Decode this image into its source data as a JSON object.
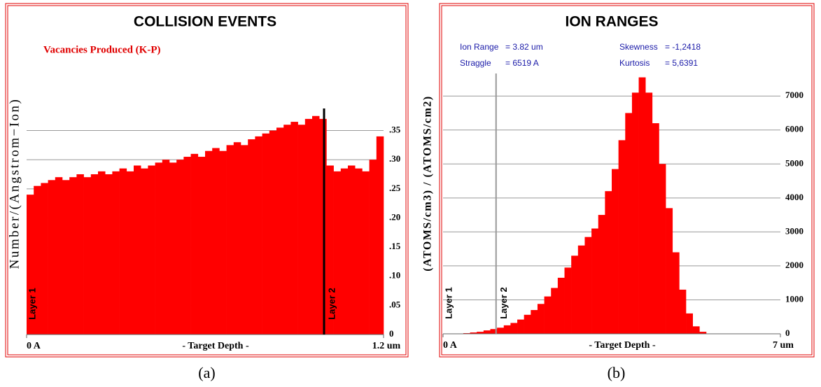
{
  "chart_data": [
    {
      "type": "histogram",
      "title": "COLLISION EVENTS",
      "subtitle": "Vacancies Produced (K-P)",
      "ylabel": "Number/(Angstrom−Ion)",
      "xlabel": "- Target Depth -",
      "caption": "(a)",
      "color": "#ff0000",
      "grid": true,
      "boundary_color": "#000000",
      "bins": [
        0,
        0.024,
        0.048,
        0.072,
        0.096,
        0.12,
        0.144,
        0.168,
        0.192,
        0.216,
        0.24,
        0.264,
        0.288,
        0.312,
        0.336,
        0.36,
        0.384,
        0.408,
        0.432,
        0.456,
        0.48,
        0.504,
        0.528,
        0.552,
        0.576,
        0.6,
        0.624,
        0.648,
        0.672,
        0.696,
        0.72,
        0.744,
        0.768,
        0.792,
        0.816,
        0.84,
        0.864,
        0.888,
        0.912,
        0.936,
        0.96,
        0.984,
        1.008,
        1.032,
        1.056,
        1.08,
        1.104,
        1.128,
        1.152,
        1.176,
        1.2
      ],
      "values": [
        0.24,
        0.255,
        0.26,
        0.265,
        0.27,
        0.265,
        0.27,
        0.275,
        0.27,
        0.275,
        0.28,
        0.275,
        0.28,
        0.285,
        0.28,
        0.29,
        0.285,
        0.29,
        0.295,
        0.3,
        0.295,
        0.3,
        0.305,
        0.31,
        0.305,
        0.315,
        0.32,
        0.315,
        0.325,
        0.33,
        0.325,
        0.335,
        0.34,
        0.345,
        0.35,
        0.355,
        0.36,
        0.365,
        0.36,
        0.37,
        0.375,
        0.37,
        0.29,
        0.28,
        0.285,
        0.29,
        0.285,
        0.28,
        0.3,
        0.34
      ],
      "xlim": [
        0,
        1.2
      ],
      "xticks": [
        {
          "value": 0,
          "label": "0 A"
        },
        {
          "value": 1.2,
          "label": "1.2 um"
        }
      ],
      "ylim": [
        0,
        0.52
      ],
      "yticks": [
        0,
        {
          "value": 0.05,
          "label": ".05"
        },
        {
          "value": 0.1,
          "label": ".10"
        },
        {
          "value": 0.15,
          "label": ".15"
        },
        {
          "value": 0.2,
          "label": ".20"
        },
        {
          "value": 0.25,
          "label": ".25"
        },
        {
          "value": 0.3,
          "label": ".30"
        },
        {
          "value": 0.35,
          "label": ".35"
        }
      ],
      "layers": [
        {
          "label": "Layer 1",
          "x": 0
        },
        {
          "label": "Layer 2",
          "x": 1.0
        }
      ]
    },
    {
      "type": "histogram",
      "title": "ION RANGES",
      "ylabel": "(ATOMS/cm3) / (ATOMS/cm2)",
      "xlabel": "- Target Depth -",
      "caption": "(b)",
      "color": "#ff0000",
      "grid": true,
      "boundary_color": "#999999",
      "stats": [
        {
          "label": "Ion Range",
          "value": "= 3.82 um"
        },
        {
          "label": "Straggle",
          "value": "= 6519 A"
        },
        {
          "label": "Skewness",
          "value": "= -1,2418"
        },
        {
          "label": "Kurtosis",
          "value": "= 5,6391"
        }
      ],
      "bins": [
        0,
        0.14,
        0.28,
        0.42,
        0.56,
        0.7,
        0.84,
        0.98,
        1.12,
        1.26,
        1.4,
        1.54,
        1.68,
        1.82,
        1.96,
        2.1,
        2.24,
        2.38,
        2.52,
        2.66,
        2.8,
        2.94,
        3.08,
        3.22,
        3.36,
        3.5,
        3.64,
        3.78,
        3.92,
        4.06,
        4.2,
        4.34,
        4.48,
        4.62,
        4.76,
        4.9,
        5.04,
        5.18,
        5.32,
        5.46,
        5.6,
        5.74,
        5.88,
        6.02,
        6.16,
        6.3,
        6.44,
        6.58,
        6.72,
        6.86,
        7
      ],
      "values": [
        0,
        0,
        0,
        20,
        40,
        60,
        100,
        140,
        180,
        250,
        320,
        420,
        560,
        700,
        880,
        1100,
        1350,
        1650,
        1950,
        2300,
        2600,
        2850,
        3100,
        3500,
        4200,
        4850,
        5700,
        6500,
        7100,
        7550,
        7100,
        6200,
        5000,
        3700,
        2400,
        1300,
        600,
        220,
        60,
        0,
        0,
        0,
        0,
        0,
        0,
        0,
        0,
        0,
        0,
        0
      ],
      "xlim": [
        0,
        7
      ],
      "xticks": [
        {
          "value": 0,
          "label": "0 A"
        },
        {
          "value": 7,
          "label": "7 um"
        }
      ],
      "ylim": [
        0,
        8900
      ],
      "yticks": [
        0,
        1000,
        2000,
        3000,
        4000,
        5000,
        6000,
        7000
      ],
      "layers": [
        {
          "label": "Layer 1",
          "x": 0
        },
        {
          "label": "Layer 2",
          "x": 1.1
        }
      ]
    }
  ]
}
